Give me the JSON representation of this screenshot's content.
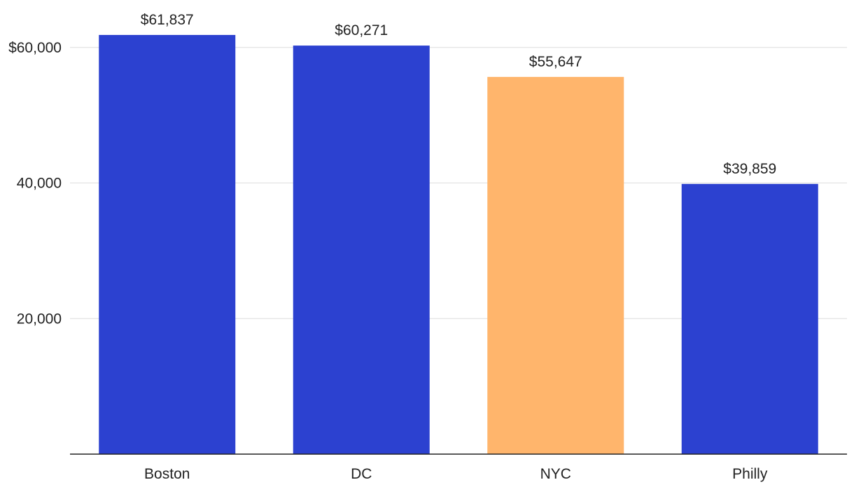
{
  "chart_data": {
    "type": "bar",
    "categories": [
      "Boston",
      "DC",
      "NYC",
      "Philly"
    ],
    "values": [
      61837,
      60271,
      55647,
      39859
    ],
    "value_labels": [
      "$61,837",
      "$60,271",
      "$55,647",
      "$39,859"
    ],
    "bar_colors": [
      "#2c41d0",
      "#2c41d0",
      "#ffb56c",
      "#2c41d0"
    ],
    "title": "",
    "xlabel": "",
    "ylabel": "",
    "ylim": [
      0,
      62000
    ],
    "y_ticks": [
      {
        "value": 20000,
        "label": "20,000"
      },
      {
        "value": 40000,
        "label": "40,000"
      },
      {
        "value": 60000,
        "label": "$60,000"
      }
    ],
    "grid": true,
    "legend": "none"
  }
}
